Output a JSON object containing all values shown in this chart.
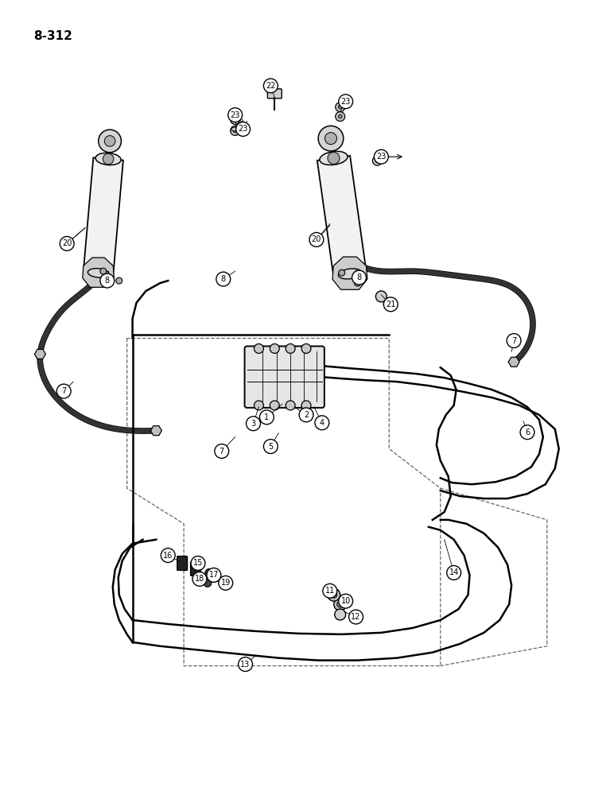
{
  "page_label": "8-312",
  "background_color": "#ffffff",
  "line_color": "#1a1a1a",
  "dashed_line_color": "#333333",
  "text_color": "#000000",
  "fig_width": 7.72,
  "fig_height": 10.0,
  "title": "8-312"
}
